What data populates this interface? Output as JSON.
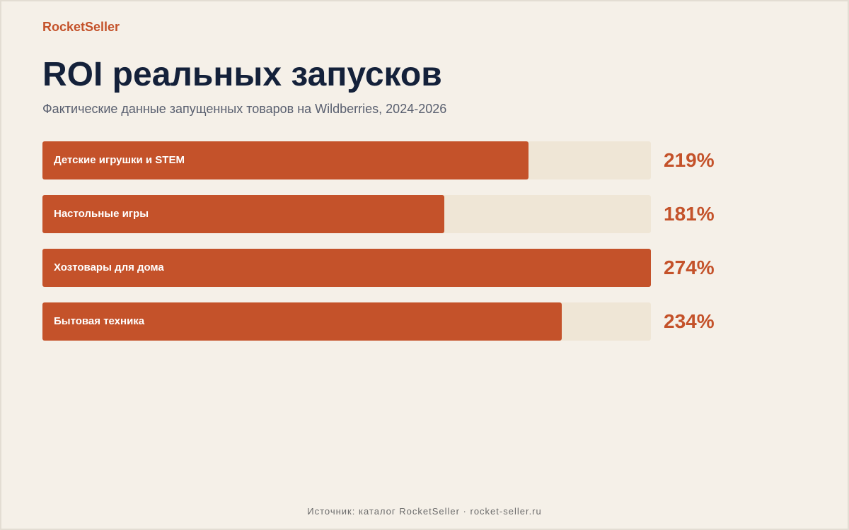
{
  "brand": "RocketSeller",
  "title": "ROI реальных запусков",
  "subtitle": "Фактические данные запущенных товаров на Wildberries, 2024-2026",
  "footer": "Источник: каталог RocketSeller · rocket-seller.ru",
  "colors": {
    "accent": "#c4522a",
    "track": "#efe6d6",
    "background": "#f5f0e8",
    "title": "#14213a"
  },
  "chart_data": {
    "type": "bar",
    "orientation": "horizontal",
    "categories": [
      "Детские игрушки и STEM",
      "Настольные игры",
      "Хозтовары для дома",
      "Бытовая техника"
    ],
    "values": [
      219,
      181,
      274,
      234
    ],
    "value_labels": [
      "219%",
      "181%",
      "274%",
      "234%"
    ],
    "unit": "%",
    "xlim": [
      0,
      274
    ],
    "grid": false
  }
}
